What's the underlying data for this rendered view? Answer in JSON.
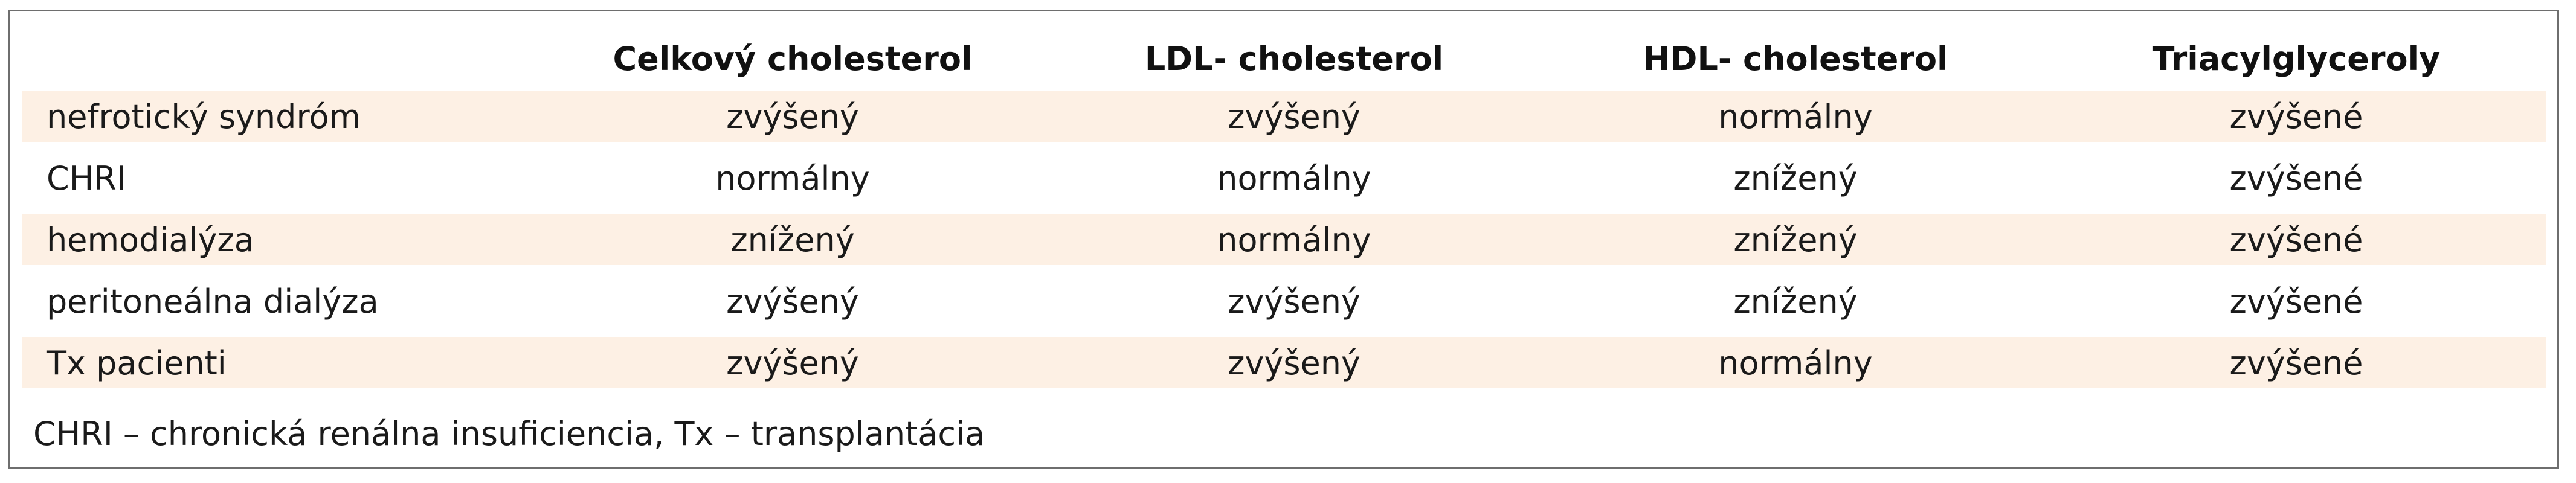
{
  "table": {
    "columns": [
      "",
      "Celkový cholesterol",
      "LDL- cholesterol",
      "HDL- cholesterol",
      "Triacylglyceroly"
    ],
    "rows": [
      {
        "label": "nefrotický syndróm",
        "values": [
          "zvýšený",
          "zvýšený",
          "normálny",
          "zvýšené"
        ],
        "shaded": true
      },
      {
        "label": "CHRI",
        "values": [
          "normálny",
          "normálny",
          "znížený",
          "zvýšené"
        ],
        "shaded": false
      },
      {
        "label": "hemodialýza",
        "values": [
          "znížený",
          "normálny",
          "znížený",
          "zvýšené"
        ],
        "shaded": true
      },
      {
        "label": "peritoneálna dialýza",
        "values": [
          "zvýšený",
          "zvýšený",
          "znížený",
          "zvýšené"
        ],
        "shaded": false
      },
      {
        "label": "Tx pacienti",
        "values": [
          "zvýšený",
          "zvýšený",
          "normálny",
          "zvýšené"
        ],
        "shaded": true
      }
    ]
  },
  "footnote": "CHRI – chronická renálna insuficiencia, Tx – transplantácia",
  "colors": {
    "border": "#6e6e6e",
    "row_shade": "#fdf0e4",
    "text": "#1a1a1a"
  }
}
